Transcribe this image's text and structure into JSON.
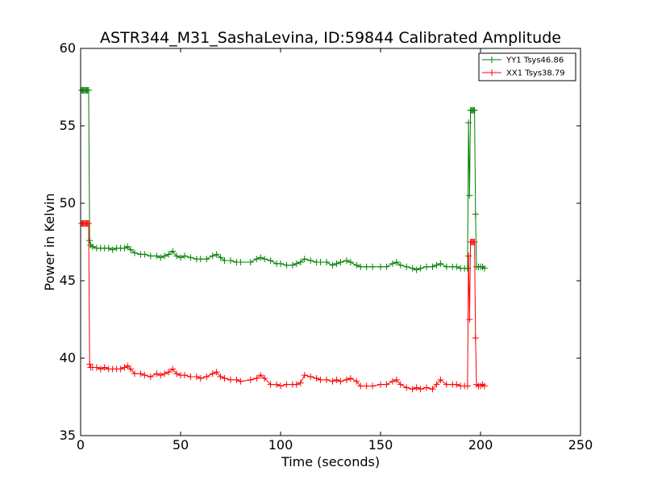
{
  "chart_data": {
    "type": "line",
    "title": "ASTR344_M31_SashaLevina, ID:59844 Calibrated Amplitude",
    "xlabel": "Time (seconds)",
    "ylabel": "Power in Kelvin",
    "xlim": [
      0,
      250
    ],
    "ylim": [
      35,
      60
    ],
    "xticks": [
      0,
      50,
      100,
      150,
      200,
      250
    ],
    "yticks": [
      35,
      40,
      45,
      50,
      55,
      60
    ],
    "grid": false,
    "legend_position": "top-right",
    "marker": "+",
    "series": [
      {
        "name": "YY1 Tsys46.86",
        "color": "#008000",
        "x": [
          0.5,
          1,
          1.5,
          2,
          2.5,
          3,
          3.5,
          4,
          4.5,
          5,
          6,
          8,
          10,
          12,
          14,
          16,
          18,
          20,
          22,
          23.5,
          25,
          27,
          30,
          32,
          35,
          38,
          40,
          42,
          44,
          46,
          48,
          50,
          52,
          55,
          58,
          60,
          63,
          66,
          68,
          70,
          72,
          75,
          78,
          80,
          85,
          88,
          90,
          92,
          95,
          98,
          100,
          103,
          106,
          108,
          110,
          112,
          115,
          118,
          120,
          123,
          126,
          128,
          130,
          133,
          135,
          138,
          140,
          143,
          146,
          150,
          153,
          156,
          158,
          160,
          163,
          166,
          168,
          170,
          173,
          176,
          178,
          180,
          183,
          186,
          188,
          190,
          192,
          193.5,
          194,
          194.5,
          195,
          195.5,
          196,
          196.5,
          197,
          197.5,
          198,
          199,
          200,
          201,
          202
        ],
        "values": [
          57.3,
          57.3,
          57.3,
          57.3,
          57.3,
          57.3,
          57.3,
          57.3,
          47.6,
          47.3,
          47.2,
          47.1,
          47.1,
          47.1,
          47.1,
          47.0,
          47.1,
          47.1,
          47.1,
          47.2,
          47.0,
          46.8,
          46.7,
          46.7,
          46.6,
          46.6,
          46.5,
          46.6,
          46.7,
          46.9,
          46.6,
          46.5,
          46.6,
          46.5,
          46.4,
          46.4,
          46.4,
          46.6,
          46.7,
          46.5,
          46.3,
          46.3,
          46.2,
          46.2,
          46.2,
          46.4,
          46.5,
          46.4,
          46.3,
          46.1,
          46.1,
          46.0,
          46.0,
          46.1,
          46.2,
          46.4,
          46.3,
          46.2,
          46.2,
          46.2,
          46.0,
          46.1,
          46.2,
          46.3,
          46.2,
          46.0,
          45.9,
          45.9,
          45.9,
          45.9,
          45.9,
          46.1,
          46.2,
          46.0,
          45.9,
          45.8,
          45.7,
          45.8,
          45.9,
          45.9,
          46.0,
          46.1,
          45.9,
          45.9,
          45.9,
          45.8,
          45.8,
          45.8,
          55.2,
          50.5,
          56.0,
          56.0,
          56.0,
          56.0,
          56.0,
          49.3,
          45.9,
          45.9,
          45.9,
          45.9,
          45.8
        ]
      },
      {
        "name": "XX1 Tsys38.79",
        "color": "#ff0000",
        "x": [
          0.5,
          1,
          1.5,
          2,
          2.5,
          3,
          3.5,
          4,
          4.5,
          5,
          6,
          8,
          10,
          12,
          14,
          16,
          18,
          20,
          22,
          23.5,
          25,
          27,
          30,
          32,
          35,
          38,
          40,
          42,
          44,
          46,
          48,
          50,
          52,
          55,
          58,
          60,
          63,
          66,
          68,
          70,
          72,
          75,
          78,
          80,
          85,
          88,
          90,
          92,
          95,
          98,
          100,
          103,
          106,
          108,
          110,
          112,
          115,
          118,
          120,
          123,
          126,
          128,
          130,
          133,
          135,
          138,
          140,
          143,
          146,
          150,
          153,
          156,
          158,
          160,
          163,
          166,
          168,
          170,
          173,
          176,
          178,
          180,
          183,
          186,
          188,
          190,
          192,
          193.5,
          194,
          194.5,
          195,
          195.5,
          196,
          196.5,
          197,
          197.5,
          198,
          199,
          200,
          201,
          202
        ],
        "values": [
          48.7,
          48.7,
          48.7,
          48.7,
          48.7,
          48.7,
          48.7,
          48.7,
          39.6,
          39.4,
          39.4,
          39.4,
          39.3,
          39.4,
          39.3,
          39.3,
          39.3,
          39.3,
          39.4,
          39.5,
          39.3,
          39.0,
          39.0,
          38.9,
          38.8,
          39.0,
          38.9,
          39.0,
          39.1,
          39.3,
          39.0,
          38.9,
          38.9,
          38.8,
          38.8,
          38.7,
          38.8,
          39.0,
          39.1,
          38.8,
          38.7,
          38.6,
          38.6,
          38.5,
          38.6,
          38.7,
          38.9,
          38.7,
          38.3,
          38.3,
          38.2,
          38.3,
          38.3,
          38.3,
          38.4,
          38.9,
          38.8,
          38.7,
          38.6,
          38.6,
          38.5,
          38.6,
          38.5,
          38.6,
          38.7,
          38.5,
          38.2,
          38.2,
          38.2,
          38.3,
          38.3,
          38.5,
          38.6,
          38.3,
          38.1,
          38.0,
          38.1,
          38.0,
          38.1,
          38.0,
          38.3,
          38.6,
          38.3,
          38.3,
          38.3,
          38.2,
          38.2,
          38.2,
          46.6,
          42.5,
          47.5,
          47.5,
          47.5,
          47.5,
          47.5,
          41.3,
          38.3,
          38.2,
          38.2,
          38.3,
          38.2
        ]
      }
    ]
  }
}
